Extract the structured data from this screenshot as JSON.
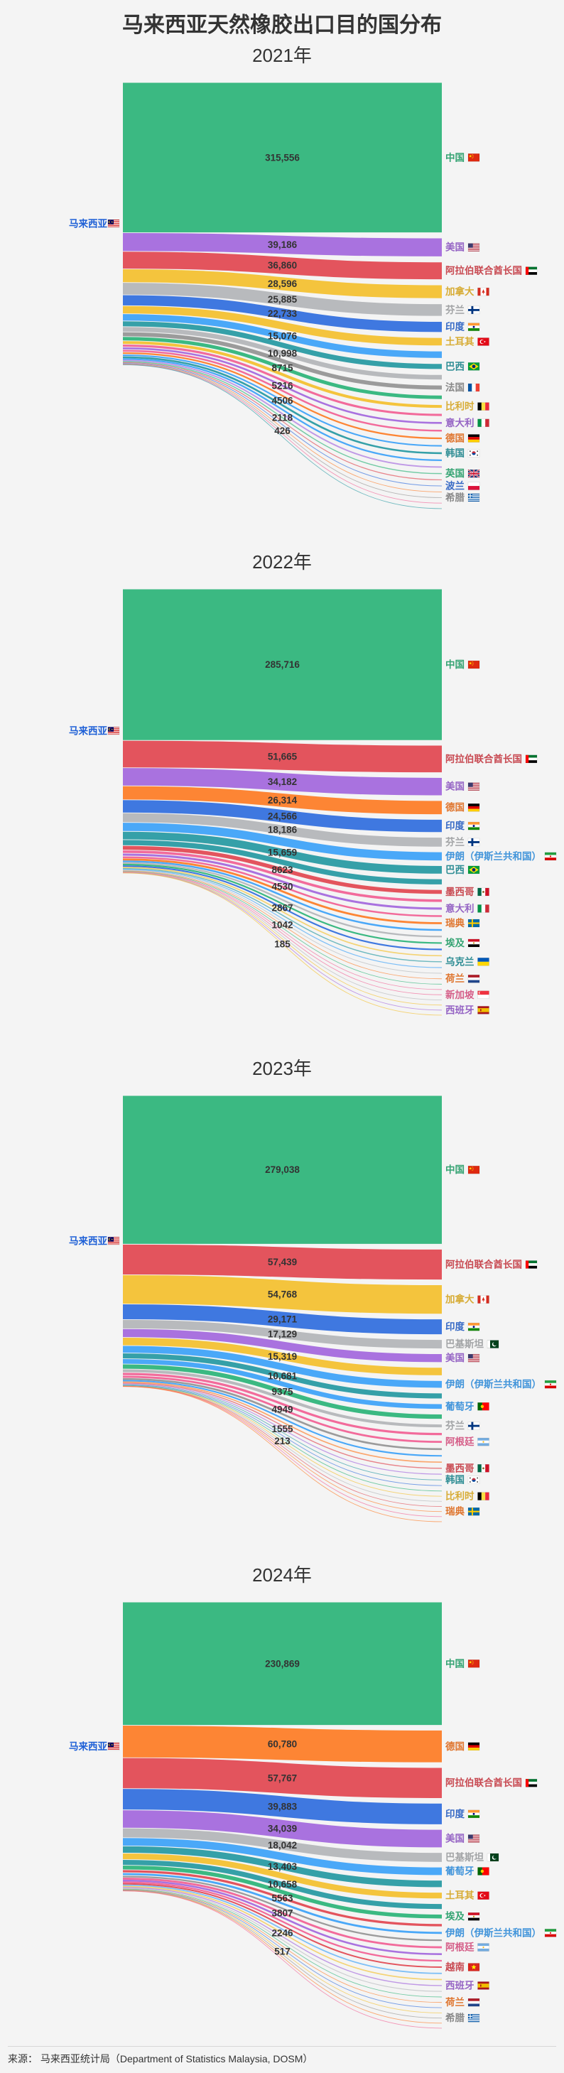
{
  "title": "马来西亚天然橡胶出口目的国分布",
  "footer": {
    "source": "来源： 马来西亚统计局（Department of Statistics Malaysia, DOSM）"
  },
  "chart_data": [
    {
      "type": "sankey",
      "title": "2021年",
      "source": {
        "name": "马来西亚",
        "flag": "my",
        "color": "#1d5fd6"
      },
      "links": [
        {
          "target": "中国",
          "flag": "cn",
          "value": 315556,
          "value_label": "315,556",
          "color": "#3bb982"
        },
        {
          "target": "美国",
          "flag": "us",
          "value": 39186,
          "value_label": "39,186",
          "color": "#a972df"
        },
        {
          "target": "阿拉伯联合酋长国",
          "flag": "ae",
          "value": 36860,
          "value_label": "36,860",
          "color": "#e3545d"
        },
        {
          "target": "加拿大",
          "flag": "ca",
          "value": 28596,
          "value_label": "28,596",
          "color": "#f4c43d"
        },
        {
          "target": "芬兰",
          "flag": "fi",
          "value": 25885,
          "value_label": "25,885",
          "color": "#b8babd"
        },
        {
          "target": "印度",
          "flag": "in",
          "value": 22733,
          "value_label": "22,733",
          "color": "#3f78e0"
        },
        {
          "target": "土耳其",
          "flag": "tr",
          "value": 17000,
          "value_label": "",
          "color": "#f4c43d"
        },
        {
          "target": "",
          "flag": "",
          "value": 15076,
          "value_label": "15,076",
          "color": "#4aa8f8"
        },
        {
          "target": "巴西",
          "flag": "br",
          "value": 12000,
          "value_label": "",
          "color": "#35a0a8"
        },
        {
          "target": "",
          "flag": "",
          "value": 10998,
          "value_label": "10,998",
          "color": "#b8babd"
        },
        {
          "target": "法国",
          "flag": "fr",
          "value": 9800,
          "value_label": "",
          "color": "#9b9b9b"
        },
        {
          "target": "",
          "flag": "",
          "value": 8715,
          "value_label": "8715",
          "color": "#3bb982"
        },
        {
          "target": "比利时",
          "flag": "be",
          "value": 7300,
          "value_label": "",
          "color": "#f4c43d"
        },
        {
          "target": "",
          "flag": "",
          "value": 6000,
          "value_label": "",
          "color": "#f26b9b"
        },
        {
          "target": "意大利",
          "flag": "it",
          "value": 5216,
          "value_label": "5216",
          "color": "#a972df"
        },
        {
          "target": "",
          "flag": "",
          "value": 5000,
          "value_label": "",
          "color": "#f26b9b"
        },
        {
          "target": "德国",
          "flag": "de",
          "value": 4700,
          "value_label": "",
          "color": "#fd8534"
        },
        {
          "target": "",
          "flag": "",
          "value": 4506,
          "value_label": "4506",
          "color": "#4aa8f8"
        },
        {
          "target": "韩国",
          "flag": "kr",
          "value": 3900,
          "value_label": "",
          "color": "#35a0a8"
        },
        {
          "target": "",
          "flag": "",
          "value": 3400,
          "value_label": "",
          "color": "#4aa8f8"
        },
        {
          "target": "",
          "flag": "",
          "value": 2900,
          "value_label": "",
          "color": "#a972df"
        },
        {
          "target": "英国",
          "flag": "gb",
          "value": 2118,
          "value_label": "2118",
          "color": "#3bb982"
        },
        {
          "target": "",
          "flag": "",
          "value": 1800,
          "value_label": "",
          "color": "#e3545d"
        },
        {
          "target": "波兰",
          "flag": "pl",
          "value": 1500,
          "value_label": "",
          "color": "#3f78e0"
        },
        {
          "target": "",
          "flag": "",
          "value": 1100,
          "value_label": "",
          "color": "#fd8534"
        },
        {
          "target": "希腊",
          "flag": "gr",
          "value": 426,
          "value_label": "426",
          "color": "#9b9b9b"
        },
        {
          "target": "",
          "flag": "",
          "value": 350,
          "value_label": "",
          "color": "#f26b9b"
        },
        {
          "target": "",
          "flag": "",
          "value": 280,
          "value_label": "",
          "color": "#35a0a8"
        }
      ]
    },
    {
      "type": "sankey",
      "title": "2022年",
      "source": {
        "name": "马来西亚",
        "flag": "my",
        "color": "#1d5fd6"
      },
      "links": [
        {
          "target": "中国",
          "flag": "cn",
          "value": 285716,
          "value_label": "285,716",
          "color": "#3bb982"
        },
        {
          "target": "阿拉伯联合酋长国",
          "flag": "ae",
          "value": 51665,
          "value_label": "51,665",
          "color": "#e3545d"
        },
        {
          "target": "美国",
          "flag": "us",
          "value": 34182,
          "value_label": "34,182",
          "color": "#a972df"
        },
        {
          "target": "德国",
          "flag": "de",
          "value": 26314,
          "value_label": "26,314",
          "color": "#fd8534"
        },
        {
          "target": "印度",
          "flag": "in",
          "value": 24566,
          "value_label": "24,566",
          "color": "#3f78e0"
        },
        {
          "target": "芬兰",
          "flag": "fi",
          "value": 18186,
          "value_label": "18,186",
          "color": "#b8babd"
        },
        {
          "target": "伊朗（伊斯兰共和国）",
          "flag": "ir",
          "value": 16800,
          "value_label": "",
          "color": "#4aa8f8"
        },
        {
          "target": "巴西",
          "flag": "br",
          "value": 15659,
          "value_label": "15,659",
          "color": "#35a0a8"
        },
        {
          "target": "",
          "flag": "",
          "value": 11000,
          "value_label": "",
          "color": "#35a0a8"
        },
        {
          "target": "墨西哥",
          "flag": "mx",
          "value": 8623,
          "value_label": "8623",
          "color": "#e3545d"
        },
        {
          "target": "",
          "flag": "",
          "value": 6000,
          "value_label": "",
          "color": "#f26b9b"
        },
        {
          "target": "意大利",
          "flag": "it",
          "value": 5300,
          "value_label": "",
          "color": "#a972df"
        },
        {
          "target": "",
          "flag": "",
          "value": 4530,
          "value_label": "4530",
          "color": "#f26b9b"
        },
        {
          "target": "瑞典",
          "flag": "se",
          "value": 3800,
          "value_label": "",
          "color": "#fd8534"
        },
        {
          "target": "",
          "flag": "",
          "value": 3300,
          "value_label": "",
          "color": "#4aa8f8"
        },
        {
          "target": "",
          "flag": "",
          "value": 3000,
          "value_label": "",
          "color": "#b8babd"
        },
        {
          "target": "埃及",
          "flag": "eg",
          "value": 2950,
          "value_label": "",
          "color": "#3bb982"
        },
        {
          "target": "",
          "flag": "",
          "value": 2867,
          "value_label": "2867",
          "color": "#3f78e0"
        },
        {
          "target": "",
          "flag": "",
          "value": 2300,
          "value_label": "",
          "color": "#f4c43d"
        },
        {
          "target": "乌克兰",
          "flag": "ua",
          "value": 1900,
          "value_label": "",
          "color": "#35a0a8"
        },
        {
          "target": "",
          "flag": "",
          "value": 1600,
          "value_label": "",
          "color": "#4aa8f8"
        },
        {
          "target": "",
          "flag": "",
          "value": 1300,
          "value_label": "",
          "color": "#b8babd"
        },
        {
          "target": "荷兰",
          "flag": "nl",
          "value": 1042,
          "value_label": "1042",
          "color": "#fd8534"
        },
        {
          "target": "",
          "flag": "",
          "value": 900,
          "value_label": "",
          "color": "#3bb982"
        },
        {
          "target": "",
          "flag": "",
          "value": 700,
          "value_label": "",
          "color": "#f26b9b"
        },
        {
          "target": "新加坡",
          "flag": "sg",
          "value": 600,
          "value_label": "",
          "color": "#f26b9b"
        },
        {
          "target": "",
          "flag": "",
          "value": 450,
          "value_label": "",
          "color": "#b8babd"
        },
        {
          "target": "",
          "flag": "",
          "value": 350,
          "value_label": "",
          "color": "#f4c43d"
        },
        {
          "target": "西班牙",
          "flag": "es",
          "value": 250,
          "value_label": "",
          "color": "#a972df"
        },
        {
          "target": "",
          "flag": "",
          "value": 185,
          "value_label": "185",
          "color": "#f4c43d"
        }
      ]
    },
    {
      "type": "sankey",
      "title": "2023年",
      "source": {
        "name": "马来西亚",
        "flag": "my",
        "color": "#1d5fd6"
      },
      "links": [
        {
          "target": "中国",
          "flag": "cn",
          "value": 279038,
          "value_label": "279,038",
          "color": "#3bb982"
        },
        {
          "target": "阿拉伯联合酋长国",
          "flag": "ae",
          "value": 57439,
          "value_label": "57,439",
          "color": "#e3545d"
        },
        {
          "target": "加拿大",
          "flag": "ca",
          "value": 54768,
          "value_label": "54,768",
          "color": "#f4c43d"
        },
        {
          "target": "印度",
          "flag": "in",
          "value": 29171,
          "value_label": "29,171",
          "color": "#3f78e0"
        },
        {
          "target": "巴基斯坦",
          "flag": "pk",
          "value": 17129,
          "value_label": "17,129",
          "color": "#b8babd"
        },
        {
          "target": "美国",
          "flag": "us",
          "value": 16300,
          "value_label": "",
          "color": "#a972df"
        },
        {
          "target": "",
          "flag": "",
          "value": 15319,
          "value_label": "15,319",
          "color": "#f4c43d"
        },
        {
          "target": "伊朗（伊斯兰共和国）",
          "flag": "ir",
          "value": 14000,
          "value_label": "",
          "color": "#4aa8f8"
        },
        {
          "target": "",
          "flag": "",
          "value": 10681,
          "value_label": "10,681",
          "color": "#35a0a8"
        },
        {
          "target": "葡萄牙",
          "flag": "pt",
          "value": 10000,
          "value_label": "",
          "color": "#4aa8f8"
        },
        {
          "target": "",
          "flag": "",
          "value": 9375,
          "value_label": "9375",
          "color": "#3bb982"
        },
        {
          "target": "芬兰",
          "flag": "fi",
          "value": 6500,
          "value_label": "",
          "color": "#b8babd"
        },
        {
          "target": "",
          "flag": "",
          "value": 5500,
          "value_label": "",
          "color": "#f26b9b"
        },
        {
          "target": "阿根廷",
          "flag": "ar",
          "value": 4949,
          "value_label": "4949",
          "color": "#f26b9b"
        },
        {
          "target": "",
          "flag": "",
          "value": 3500,
          "value_label": "",
          "color": "#9b9b9b"
        },
        {
          "target": "",
          "flag": "",
          "value": 2800,
          "value_label": "",
          "color": "#4aa8f8"
        },
        {
          "target": "",
          "flag": "",
          "value": 2200,
          "value_label": "",
          "color": "#fd8534"
        },
        {
          "target": "墨西哥",
          "flag": "mx",
          "value": 1900,
          "value_label": "",
          "color": "#e3545d"
        },
        {
          "target": "",
          "flag": "",
          "value": 1555,
          "value_label": "1555",
          "color": "#a972df"
        },
        {
          "target": "韩国",
          "flag": "kr",
          "value": 1300,
          "value_label": "",
          "color": "#35a0a8"
        },
        {
          "target": "",
          "flag": "",
          "value": 1000,
          "value_label": "",
          "color": "#3f78e0"
        },
        {
          "target": "",
          "flag": "",
          "value": 600,
          "value_label": "",
          "color": "#3bb982"
        },
        {
          "target": "比利时",
          "flag": "be",
          "value": 213,
          "value_label": "213",
          "color": "#f4c43d"
        },
        {
          "target": "",
          "flag": "",
          "value": 190,
          "value_label": "",
          "color": "#b8babd"
        },
        {
          "target": "",
          "flag": "",
          "value": 165,
          "value_label": "",
          "color": "#e3545d"
        },
        {
          "target": "瑞典",
          "flag": "se",
          "value": 140,
          "value_label": "",
          "color": "#fd8534"
        },
        {
          "target": "",
          "flag": "",
          "value": 115,
          "value_label": "",
          "color": "#f26b9b"
        },
        {
          "target": "",
          "flag": "",
          "value": 90,
          "value_label": "",
          "color": "#fd8534"
        }
      ]
    },
    {
      "type": "sankey",
      "title": "2024年",
      "source": {
        "name": "马来西亚",
        "flag": "my",
        "color": "#1d5fd6"
      },
      "links": [
        {
          "target": "中国",
          "flag": "cn",
          "value": 230869,
          "value_label": "230,869",
          "color": "#3bb982"
        },
        {
          "target": "德国",
          "flag": "de",
          "value": 60780,
          "value_label": "60,780",
          "color": "#fd8534"
        },
        {
          "target": "阿拉伯联合酋长国",
          "flag": "ae",
          "value": 57767,
          "value_label": "57,767",
          "color": "#e3545d"
        },
        {
          "target": "印度",
          "flag": "in",
          "value": 39883,
          "value_label": "39,883",
          "color": "#3f78e0"
        },
        {
          "target": "美国",
          "flag": "us",
          "value": 34039,
          "value_label": "34,039",
          "color": "#a972df"
        },
        {
          "target": "巴基斯坦",
          "flag": "pk",
          "value": 18042,
          "value_label": "18,042",
          "color": "#b8babd"
        },
        {
          "target": "葡萄牙",
          "flag": "pt",
          "value": 15500,
          "value_label": "",
          "color": "#4aa8f8"
        },
        {
          "target": "",
          "flag": "",
          "value": 13403,
          "value_label": "13,403",
          "color": "#35a0a8"
        },
        {
          "target": "土耳其",
          "flag": "tr",
          "value": 12000,
          "value_label": "",
          "color": "#f4c43d"
        },
        {
          "target": "",
          "flag": "",
          "value": 10658,
          "value_label": "10,658",
          "color": "#35a0a8"
        },
        {
          "target": "埃及",
          "flag": "eg",
          "value": 8500,
          "value_label": "",
          "color": "#3bb982"
        },
        {
          "target": "",
          "flag": "",
          "value": 5563,
          "value_label": "5563",
          "color": "#e3545d"
        },
        {
          "target": "伊朗（伊斯兰共和国）",
          "flag": "ir",
          "value": 5000,
          "value_label": "",
          "color": "#4aa8f8"
        },
        {
          "target": "",
          "flag": "",
          "value": 4200,
          "value_label": "",
          "color": "#9b9b9b"
        },
        {
          "target": "阿根廷",
          "flag": "ar",
          "value": 3807,
          "value_label": "3807",
          "color": "#f26b9b"
        },
        {
          "target": "",
          "flag": "",
          "value": 3400,
          "value_label": "",
          "color": "#a972df"
        },
        {
          "target": "",
          "flag": "",
          "value": 3000,
          "value_label": "",
          "color": "#f26b9b"
        },
        {
          "target": "越南",
          "flag": "vn",
          "value": 2700,
          "value_label": "",
          "color": "#e3545d"
        },
        {
          "target": "",
          "flag": "",
          "value": 2400,
          "value_label": "",
          "color": "#4aa8f8"
        },
        {
          "target": "",
          "flag": "",
          "value": 2246,
          "value_label": "2246",
          "color": "#f4c43d"
        },
        {
          "target": "西班牙",
          "flag": "es",
          "value": 1900,
          "value_label": "",
          "color": "#a972df"
        },
        {
          "target": "",
          "flag": "",
          "value": 1500,
          "value_label": "",
          "color": "#b8babd"
        },
        {
          "target": "",
          "flag": "",
          "value": 1100,
          "value_label": "",
          "color": "#3bb982"
        },
        {
          "target": "荷兰",
          "flag": "nl",
          "value": 850,
          "value_label": "",
          "color": "#fd8534"
        },
        {
          "target": "",
          "flag": "",
          "value": 650,
          "value_label": "",
          "color": "#3f78e0"
        },
        {
          "target": "",
          "flag": "",
          "value": 517,
          "value_label": "517",
          "color": "#f4c43d"
        },
        {
          "target": "希腊",
          "flag": "gr",
          "value": 400,
          "value_label": "",
          "color": "#9b9b9b"
        },
        {
          "target": "",
          "flag": "",
          "value": 300,
          "value_label": "",
          "color": "#fd8534"
        },
        {
          "target": "",
          "flag": "",
          "value": 200,
          "value_label": "",
          "color": "#f26b9b"
        }
      ]
    }
  ]
}
